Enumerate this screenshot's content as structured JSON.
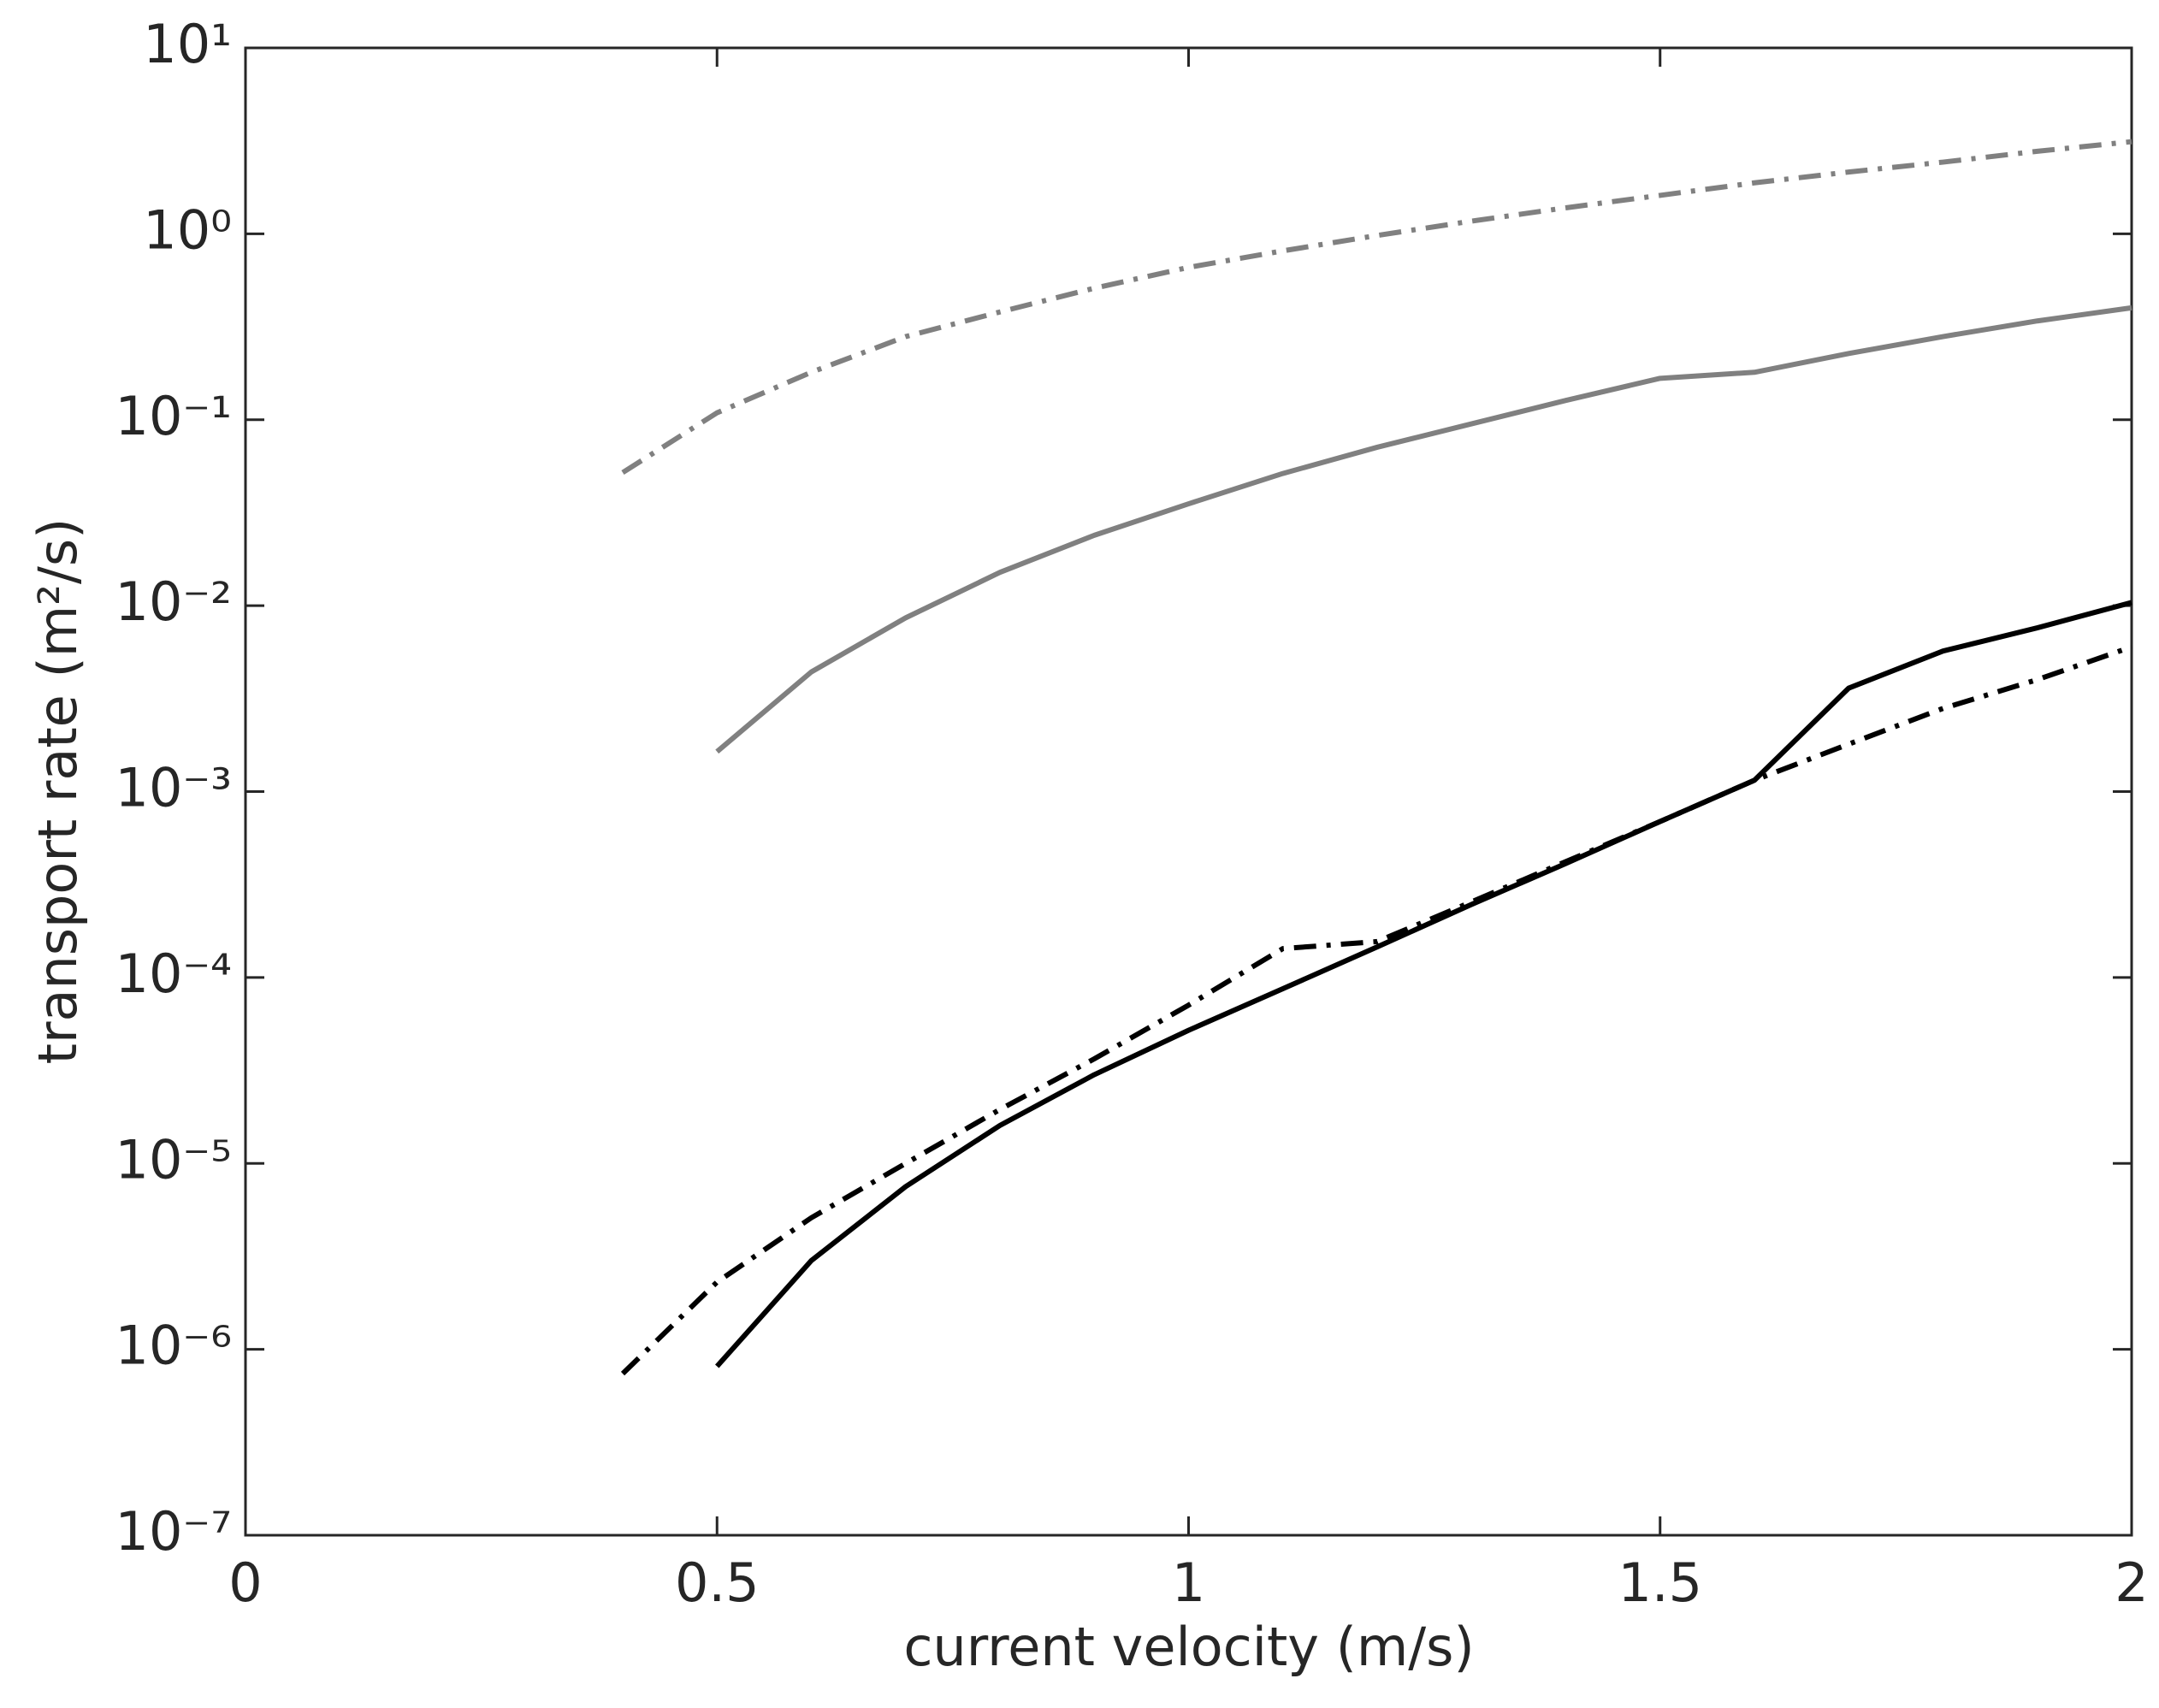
{
  "chart_data": {
    "type": "line",
    "xlabel": "current velocity (m/s)",
    "ylabel": "transport rate (m²/s)",
    "x": [
      0.4,
      0.5,
      0.6,
      0.7,
      0.8,
      0.9,
      1.0,
      1.1,
      1.2,
      1.3,
      1.4,
      1.5,
      1.6,
      1.7,
      1.8,
      1.9,
      2.0
    ],
    "series": [
      {
        "color": "#808080",
        "dash": "dashdot",
        "values": [
          0.052,
          0.109,
          0.18,
          0.28,
          0.38,
          0.51,
          0.66,
          0.81,
          0.98,
          1.17,
          1.38,
          1.61,
          1.88,
          2.15,
          2.43,
          2.78,
          3.13
        ]
      },
      {
        "color": "#808080",
        "dash": "solid",
        "values": [
          null,
          0.00164,
          0.0044,
          0.0086,
          0.0151,
          0.0239,
          0.0353,
          0.0514,
          0.0711,
          0.095,
          0.127,
          0.167,
          0.18,
          0.227,
          0.28,
          0.34,
          0.4
        ]
      },
      {
        "color": "#000000",
        "dash": "solid",
        "values": [
          null,
          8.1e-07,
          3e-06,
          7.5e-06,
          1.6e-05,
          3e-05,
          5.2e-05,
          8.7e-05,
          0.000146,
          0.000247,
          0.00041,
          0.00069,
          0.00115,
          0.0036,
          0.0057,
          0.0076,
          0.0104
        ]
      },
      {
        "color": "#000000",
        "dash": "dashdot",
        "values": [
          7.4e-07,
          2.3e-06,
          5.1e-06,
          1e-05,
          1.95e-05,
          3.65e-05,
          7.1e-05,
          0.000143,
          0.000156,
          0.000255,
          0.00042,
          0.00069,
          0.00115,
          0.0018,
          0.0028,
          0.004,
          0.006
        ]
      }
    ],
    "xlim": [
      0,
      2
    ],
    "xticks": [
      0,
      0.5,
      1,
      1.5,
      2
    ],
    "ylim": [
      1e-07,
      10
    ],
    "ylog": true,
    "yticks": [
      {
        "value": 1e-07,
        "label": "10⁻⁷"
      },
      {
        "value": 1e-06,
        "label": "10⁻⁶"
      },
      {
        "value": 1e-05,
        "label": "10⁻⁵"
      },
      {
        "value": 0.0001,
        "label": "10⁻⁴"
      },
      {
        "value": 0.001,
        "label": "10⁻³"
      },
      {
        "value": 0.01,
        "label": "10⁻²"
      },
      {
        "value": 0.1,
        "label": "10⁻¹"
      },
      {
        "value": 1,
        "label": "10⁰"
      },
      {
        "value": 10,
        "label": "10¹"
      }
    ],
    "grid": false
  }
}
